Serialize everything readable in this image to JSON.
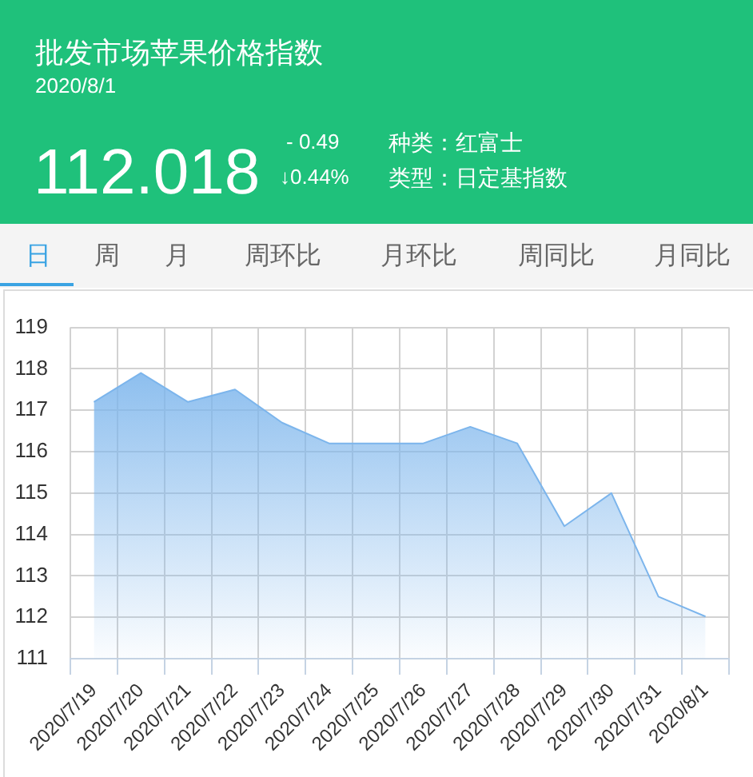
{
  "chart_data": {
    "type": "area",
    "title": "批发市场苹果价格指数",
    "subtitle": "2020/8/1",
    "categories": [
      "2020/7/19",
      "2020/7/20",
      "2020/7/21",
      "2020/7/22",
      "2020/7/23",
      "2020/7/24",
      "2020/7/25",
      "2020/7/26",
      "2020/7/27",
      "2020/7/28",
      "2020/7/29",
      "2020/7/30",
      "2020/7/31",
      "2020/8/1"
    ],
    "values": [
      117.2,
      117.9,
      117.2,
      117.5,
      116.7,
      116.2,
      116.2,
      116.2,
      116.6,
      116.2,
      114.2,
      115.0,
      112.5,
      112.018
    ],
    "color": "#7cb5ec",
    "ylim": [
      111,
      119
    ],
    "yticks": [
      111,
      112,
      113,
      114,
      115,
      116,
      117,
      118,
      119
    ],
    "grid": true,
    "annotations": [
      "112.018",
      "- 0.49",
      "↓0.44%",
      "种类：红富士",
      "类型：日定基指数",
      "日",
      "周",
      "月",
      "周环比",
      "月环比",
      "周同比",
      "月同比"
    ]
  }
}
